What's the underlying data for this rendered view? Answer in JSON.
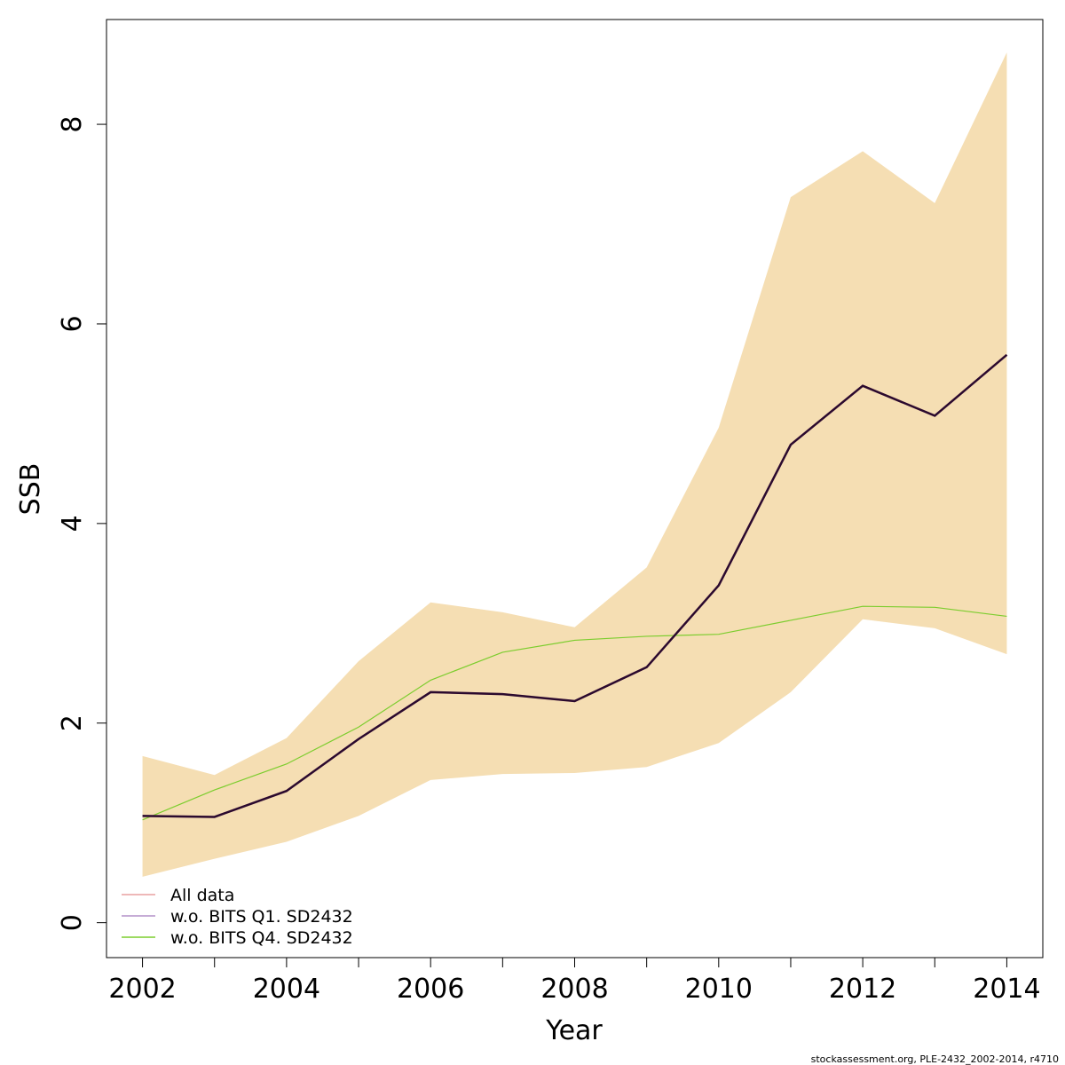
{
  "chart_data": {
    "type": "line",
    "title": "",
    "xlabel": "Year",
    "ylabel": "SSB",
    "xlim": [
      2001.5,
      2014.5
    ],
    "ylim": [
      -0.35,
      9.05
    ],
    "x_ticks": [
      2002,
      2004,
      2006,
      2008,
      2010,
      2012,
      2014
    ],
    "y_ticks": [
      0,
      2,
      4,
      6,
      8
    ],
    "grid": false,
    "legend_position": "bottom-left",
    "x": [
      2002,
      2003,
      2004,
      2005,
      2006,
      2007,
      2008,
      2009,
      2010,
      2011,
      2012,
      2013,
      2014
    ],
    "confidence_band": {
      "color": "#f5deb3",
      "lower": [
        0.46,
        0.64,
        0.81,
        1.07,
        1.43,
        1.49,
        1.5,
        1.56,
        1.8,
        2.31,
        3.04,
        2.95,
        2.69
      ],
      "upper": [
        1.67,
        1.48,
        1.85,
        2.62,
        3.21,
        3.11,
        2.96,
        3.56,
        4.96,
        7.27,
        7.73,
        7.21,
        8.72
      ]
    },
    "series": [
      {
        "name": "All data",
        "color": "#e8a0a0",
        "values": [
          1.07,
          1.06,
          1.32,
          1.84,
          2.31,
          2.29,
          2.22,
          2.56,
          3.38,
          4.79,
          5.38,
          5.08,
          5.69
        ]
      },
      {
        "name": "w.o. BITS Q1. SD2432",
        "color": "#b490c8",
        "values": [
          1.07,
          1.06,
          1.32,
          1.84,
          2.31,
          2.29,
          2.22,
          2.56,
          3.38,
          4.79,
          5.38,
          5.08,
          5.69
        ]
      },
      {
        "name": "w.o. BITS Q4. SD2432",
        "color": "#7ccd2e",
        "values": [
          1.03,
          1.33,
          1.59,
          1.96,
          2.43,
          2.71,
          2.83,
          2.87,
          2.89,
          3.03,
          3.17,
          3.16,
          3.07
        ]
      }
    ],
    "combined_line_color": "#2a0a2e"
  },
  "footer_text": "stockassessment.org, PLE-2432_2002-2014, r4710"
}
